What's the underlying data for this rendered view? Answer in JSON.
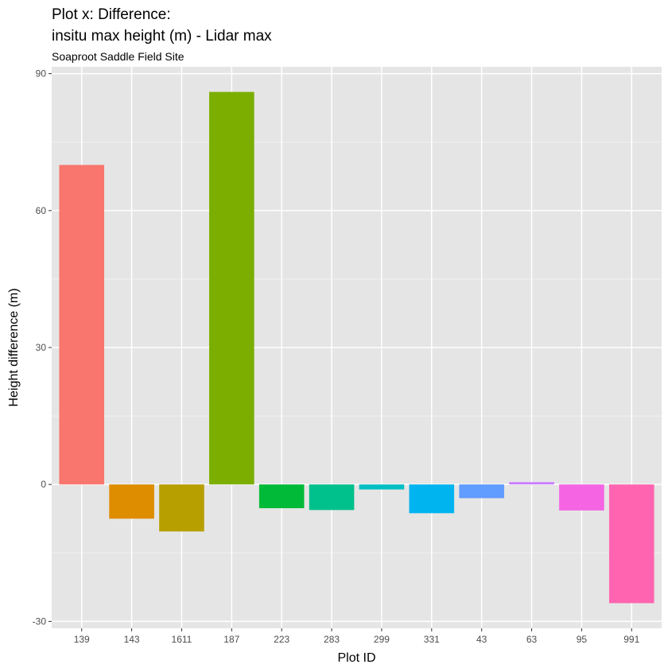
{
  "chart_data": {
    "type": "bar",
    "title_lines": [
      "Plot x: Difference:",
      "insitu max height (m) - Lidar max"
    ],
    "subtitle": "Soaproot Saddle Field Site",
    "xlabel": "Plot ID",
    "ylabel": "Height difference (m)",
    "ylim": [
      -31.5,
      91.5
    ],
    "yticks": [
      -30,
      0,
      30,
      60,
      90
    ],
    "grid": true,
    "legend": "none",
    "panel_background": "#e5e5e5",
    "categories": [
      "139",
      "143",
      "1611",
      "187",
      "223",
      "283",
      "299",
      "331",
      "43",
      "63",
      "95",
      "991"
    ],
    "values": [
      70,
      -7.5,
      -10.3,
      86,
      -5.2,
      -5.6,
      -1.1,
      -6.3,
      -3.0,
      0.5,
      -5.7,
      -26.0
    ],
    "colors": [
      "#F8766D",
      "#DE8C00",
      "#B79F00",
      "#7CAE00",
      "#00BA38",
      "#00C08B",
      "#00BFC4",
      "#00B4F0",
      "#619CFF",
      "#C77CFF",
      "#F564E3",
      "#FF64B0"
    ]
  }
}
